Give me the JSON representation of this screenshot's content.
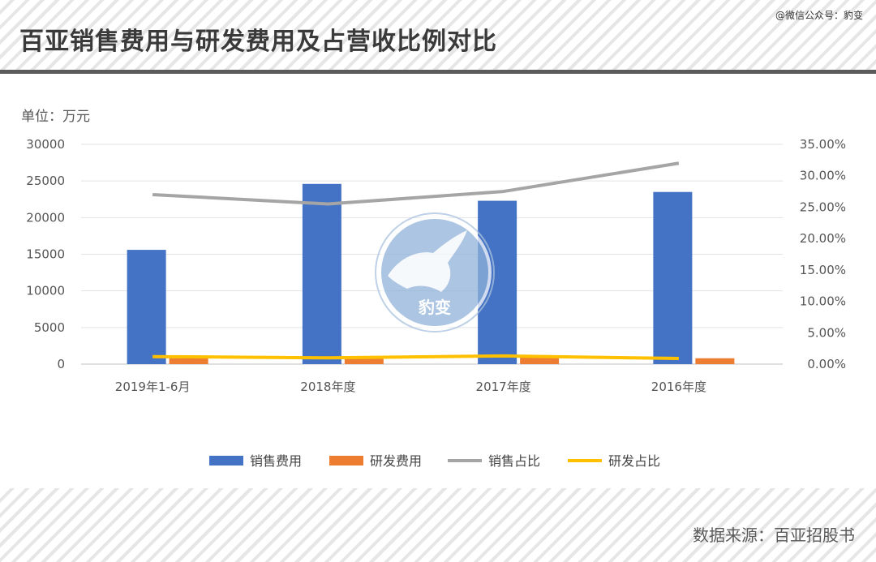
{
  "header": {
    "title": "百亚销售费用与研发费用及占营收比例对比",
    "watermark": "@微信公众号：豹变"
  },
  "footer": {
    "source": "数据来源：百亚招股书"
  },
  "logo": {
    "text": "豹变"
  },
  "colors": {
    "sales": "#4472c4",
    "rnd": "#ed7d31",
    "sales_ratio": "#a5a5a5",
    "rnd_ratio": "#ffc000"
  },
  "chart_data": {
    "type": "bar",
    "unit_label": "单位：万元",
    "categories": [
      "2019年1-6月",
      "2018年度",
      "2017年度",
      "2016年度"
    ],
    "left_axis": {
      "min": 0,
      "max": 30000,
      "ticks": [
        "0",
        "5000",
        "10000",
        "15000",
        "20000",
        "25000",
        "30000"
      ]
    },
    "right_axis": {
      "min": 0,
      "max": 35,
      "ticks": [
        "0.00%",
        "5.00%",
        "10.00%",
        "15.00%",
        "20.00%",
        "25.00%",
        "30.00%",
        "35.00%"
      ]
    },
    "series": [
      {
        "name": "销售费用",
        "kind": "bar",
        "axis": "left",
        "values": [
          15600,
          24600,
          22300,
          23500
        ]
      },
      {
        "name": "研发费用",
        "kind": "bar",
        "axis": "left",
        "values": [
          800,
          900,
          1100,
          800
        ]
      },
      {
        "name": "销售占比",
        "kind": "line",
        "axis": "right",
        "values": [
          27.0,
          25.5,
          27.5,
          32.0
        ]
      },
      {
        "name": "研发占比",
        "kind": "line",
        "axis": "right",
        "values": [
          1.2,
          1.0,
          1.3,
          0.9
        ]
      }
    ],
    "grid": true,
    "legend_position": "bottom"
  }
}
